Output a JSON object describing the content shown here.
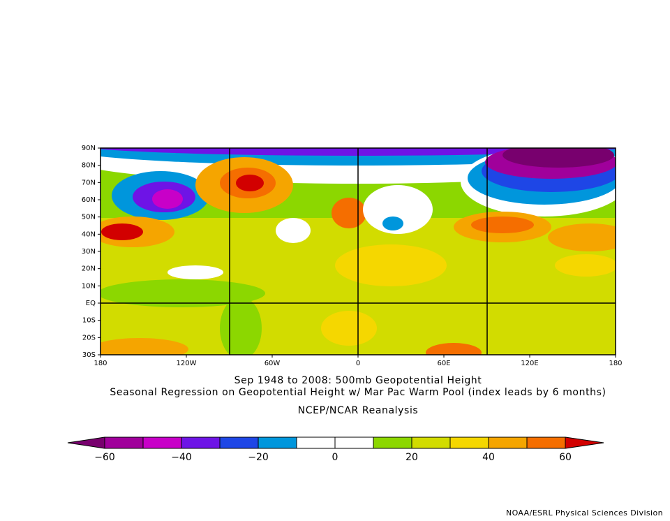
{
  "map": {
    "lat_labels": [
      "90N",
      "80N",
      "70N",
      "60N",
      "50N",
      "40N",
      "30N",
      "20N",
      "10N",
      "EQ",
      "10S",
      "20S",
      "30S"
    ],
    "lon_labels": [
      "180",
      "120W",
      "60W",
      "0",
      "60E",
      "120E",
      "180"
    ]
  },
  "title": {
    "line1": "Sep 1948 to 2008: 500mb Geopotential Height",
    "line2": "Seasonal Regression on Geopotential Height  w/ Mar Pac Warm Pool (index leads by 6 months)",
    "source": "NCEP/NCAR Reanalysis"
  },
  "colorbar": {
    "under_color": "#78006e",
    "over_color": "#d20000",
    "colors": [
      "#a0009b",
      "#c800c8",
      "#6e14e6",
      "#1e46e6",
      "#0096dc",
      "#ffffff",
      "#ffffff",
      "#8cd700",
      "#d2dc00",
      "#f5d700",
      "#f5a500",
      "#f56e00"
    ],
    "labels": [
      "−60",
      "−40",
      "−20",
      "0",
      "20",
      "40",
      "60"
    ]
  },
  "credit": "NOAA/ESRL Physical Sciences Division"
}
